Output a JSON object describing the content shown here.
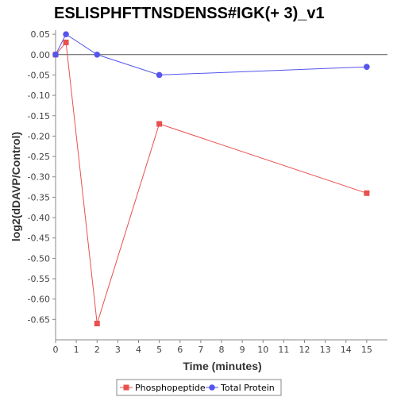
{
  "chart_data": {
    "type": "line",
    "title": "ESLISPHFTTNSDENSS#IGK(+ 3)_v1",
    "xlabel": "Time (minutes)",
    "ylabel": "log2(dDAVP/Control)",
    "xlim": [
      0,
      16
    ],
    "ylim": [
      -0.7,
      0.06
    ],
    "x_ticks": [
      0,
      1,
      2,
      3,
      4,
      5,
      6,
      7,
      8,
      9,
      10,
      11,
      12,
      13,
      14,
      15
    ],
    "y_ticks": [
      0.05,
      0.0,
      -0.05,
      -0.1,
      -0.15,
      -0.2,
      -0.25,
      -0.3,
      -0.35,
      -0.4,
      -0.45,
      -0.5,
      -0.55,
      -0.6,
      -0.65
    ],
    "x_tick_labels": [
      "0",
      "1",
      "2",
      "3",
      "4",
      "5",
      "6",
      "7",
      "8",
      "9",
      "10",
      "11",
      "12",
      "13",
      "14",
      "15"
    ],
    "y_tick_labels": [
      "0.05",
      "0.00",
      "-0.05",
      "-0.10",
      "-0.15",
      "-0.20",
      "-0.25",
      "-0.30",
      "-0.35",
      "-0.40",
      "-0.45",
      "-0.50",
      "-0.55",
      "-0.60",
      "-0.65"
    ],
    "grid": false,
    "zero_line": true,
    "legend_position": "bottom",
    "series": [
      {
        "name": "Phosphopeptide",
        "color": "#e8504f",
        "marker": "square",
        "x": [
          0,
          0.5,
          2,
          5,
          15
        ],
        "y": [
          0.0,
          0.03,
          -0.66,
          -0.17,
          -0.34
        ]
      },
      {
        "name": "Total Protein",
        "color": "#5555ee",
        "marker": "circle",
        "x": [
          0,
          0.5,
          2,
          5,
          15
        ],
        "y": [
          0.0,
          0.05,
          0.0,
          -0.05,
          -0.03
        ]
      }
    ]
  }
}
